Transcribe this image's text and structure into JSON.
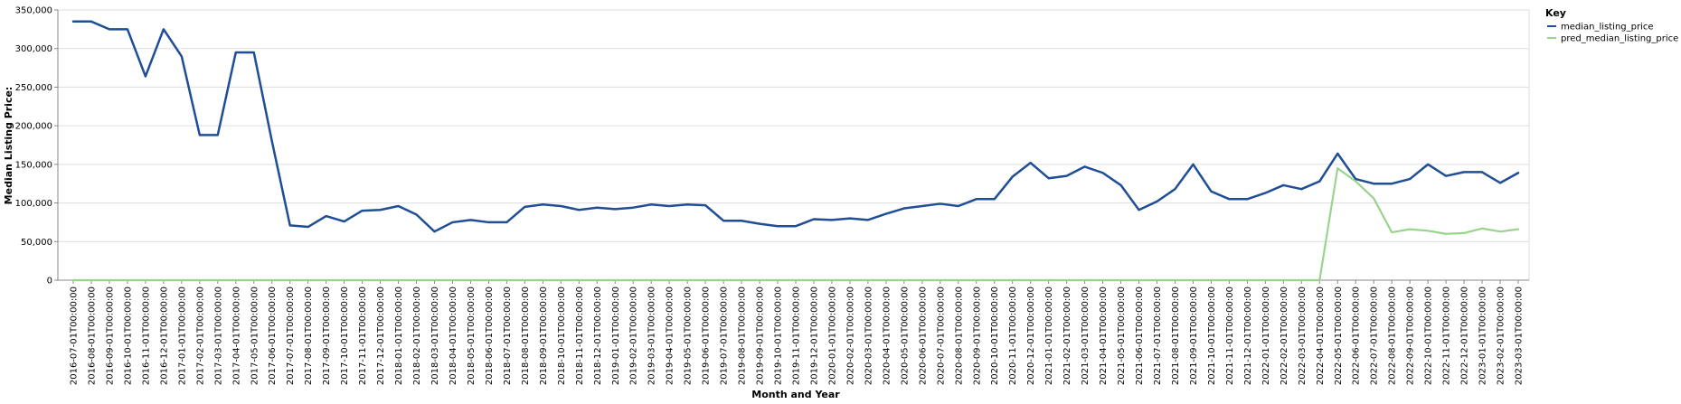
{
  "chart_data": {
    "type": "line",
    "xlabel": "Month and Year",
    "ylabel": "Median Listing Price:",
    "ylim": [
      0,
      350000
    ],
    "y_ticks": [
      "0",
      "50,000",
      "100,000",
      "150,000",
      "200,000",
      "250,000",
      "300,000",
      "350,000"
    ],
    "y_tick_values": [
      0,
      50000,
      100000,
      150000,
      200000,
      250000,
      300000,
      350000
    ],
    "grid": true,
    "legend": {
      "title": "Key",
      "position": "top-right"
    },
    "x": [
      "2016-07-01T00:00:00",
      "2016-08-01T00:00:00",
      "2016-09-01T00:00:00",
      "2016-10-01T00:00:00",
      "2016-11-01T00:00:00",
      "2016-12-01T00:00:00",
      "2017-01-01T00:00:00",
      "2017-02-01T00:00:00",
      "2017-03-01T00:00:00",
      "2017-04-01T00:00:00",
      "2017-05-01T00:00:00",
      "2017-06-01T00:00:00",
      "2017-07-01T00:00:00",
      "2017-08-01T00:00:00",
      "2017-09-01T00:00:00",
      "2017-10-01T00:00:00",
      "2017-11-01T00:00:00",
      "2017-12-01T00:00:00",
      "2018-01-01T00:00:00",
      "2018-02-01T00:00:00",
      "2018-03-01T00:00:00",
      "2018-04-01T00:00:00",
      "2018-05-01T00:00:00",
      "2018-06-01T00:00:00",
      "2018-07-01T00:00:00",
      "2018-08-01T00:00:00",
      "2018-09-01T00:00:00",
      "2018-10-01T00:00:00",
      "2018-11-01T00:00:00",
      "2018-12-01T00:00:00",
      "2019-01-01T00:00:00",
      "2019-02-01T00:00:00",
      "2019-03-01T00:00:00",
      "2019-04-01T00:00:00",
      "2019-05-01T00:00:00",
      "2019-06-01T00:00:00",
      "2019-07-01T00:00:00",
      "2019-08-01T00:00:00",
      "2019-09-01T00:00:00",
      "2019-10-01T00:00:00",
      "2019-11-01T00:00:00",
      "2019-12-01T00:00:00",
      "2020-01-01T00:00:00",
      "2020-02-01T00:00:00",
      "2020-03-01T00:00:00",
      "2020-04-01T00:00:00",
      "2020-05-01T00:00:00",
      "2020-06-01T00:00:00",
      "2020-07-01T00:00:00",
      "2020-08-01T00:00:00",
      "2020-09-01T00:00:00",
      "2020-10-01T00:00:00",
      "2020-11-01T00:00:00",
      "2020-12-01T00:00:00",
      "2021-01-01T00:00:00",
      "2021-02-01T00:00:00",
      "2021-03-01T00:00:00",
      "2021-04-01T00:00:00",
      "2021-05-01T00:00:00",
      "2021-06-01T00:00:00",
      "2021-07-01T00:00:00",
      "2021-08-01T00:00:00",
      "2021-09-01T00:00:00",
      "2021-10-01T00:00:00",
      "2021-11-01T00:00:00",
      "2021-12-01T00:00:00",
      "2022-01-01T00:00:00",
      "2022-02-01T00:00:00",
      "2022-03-01T00:00:00",
      "2022-04-01T00:00:00",
      "2022-05-01T00:00:00",
      "2022-06-01T00:00:00",
      "2022-07-01T00:00:00",
      "2022-08-01T00:00:00",
      "2022-09-01T00:00:00",
      "2022-10-01T00:00:00",
      "2022-11-01T00:00:00",
      "2022-12-01T00:00:00",
      "2023-01-01T00:00:00",
      "2023-02-01T00:00:00",
      "2023-03-01T00:00:00"
    ],
    "series": [
      {
        "name": "median_listing_price",
        "color": "#1f4e96",
        "values": [
          335000,
          335000,
          325000,
          325000,
          264000,
          325000,
          290000,
          188000,
          188000,
          295000,
          295000,
          180000,
          71000,
          69000,
          83000,
          76000,
          90000,
          91000,
          96000,
          85000,
          63000,
          75000,
          78000,
          75000,
          75000,
          95000,
          98000,
          96000,
          91000,
          94000,
          92000,
          94000,
          98000,
          96000,
          98000,
          97000,
          77000,
          77000,
          73000,
          70000,
          70000,
          79000,
          78000,
          80000,
          78000,
          86000,
          93000,
          96000,
          99000,
          96000,
          105000,
          105000,
          134000,
          152000,
          132000,
          135000,
          147000,
          139000,
          123000,
          91000,
          102000,
          118000,
          150000,
          115000,
          105000,
          105000,
          113000,
          123000,
          118000,
          128000,
          164000,
          131000,
          125000,
          125000,
          131000,
          150000,
          135000,
          140000,
          140000,
          126000,
          139000
        ]
      },
      {
        "name": "pred_median_listing_price",
        "color": "#98d48c",
        "values": [
          0,
          0,
          0,
          0,
          0,
          0,
          0,
          0,
          0,
          0,
          0,
          0,
          0,
          0,
          0,
          0,
          0,
          0,
          0,
          0,
          0,
          0,
          0,
          0,
          0,
          0,
          0,
          0,
          0,
          0,
          0,
          0,
          0,
          0,
          0,
          0,
          0,
          0,
          0,
          0,
          0,
          0,
          0,
          0,
          0,
          0,
          0,
          0,
          0,
          0,
          0,
          0,
          0,
          0,
          0,
          0,
          0,
          0,
          0,
          0,
          0,
          0,
          0,
          0,
          0,
          0,
          0,
          0,
          0,
          0,
          145000,
          128000,
          106000,
          62000,
          66000,
          64000,
          60000,
          61000,
          67000,
          63000,
          66000
        ]
      }
    ]
  }
}
